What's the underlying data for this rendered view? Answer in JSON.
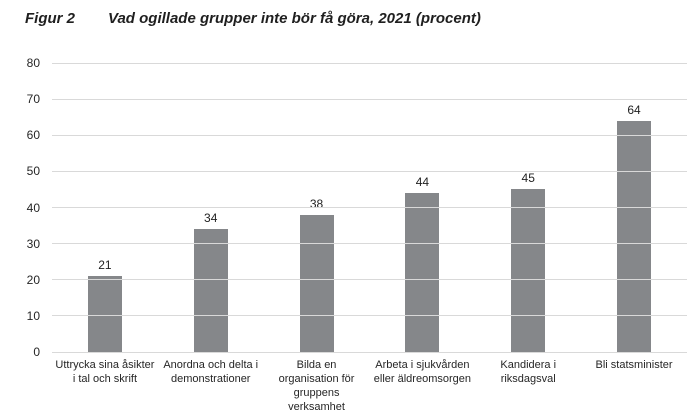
{
  "figure": {
    "label": "Figur 2",
    "title": "Vad ogillade grupper inte bör få göra, 2021 (procent)"
  },
  "chart_data": {
    "type": "bar",
    "title": "Figur 2  Vad ogillade grupper inte bör få göra, 2021 (procent)",
    "categories": [
      "Uttrycka sina åsikter i tal och skrift",
      "Anordna och delta i demonstrationer",
      "Bilda en organisation för gruppens verksamhet",
      "Arbeta i sjukvården eller äldreomsorgen",
      "Kandidera i riksdagsval",
      "Bli statsminister"
    ],
    "values": [
      21,
      34,
      38,
      44,
      45,
      64
    ],
    "data_labels": [
      "21",
      "34",
      "38",
      "44",
      "45",
      "64"
    ],
    "xlabel": "",
    "ylabel": "",
    "ylim": [
      0,
      80
    ],
    "ytick_step": 10,
    "ytick_labels": [
      "0",
      "10",
      "20",
      "30",
      "40",
      "50",
      "60",
      "70",
      "80"
    ],
    "grid": true,
    "legend_position": "none",
    "colors": {
      "bar": "#85878a",
      "gridline": "#d9d9d9",
      "text": "#262626",
      "title_text": "#1f1f1f",
      "background": "#ffffff"
    }
  }
}
